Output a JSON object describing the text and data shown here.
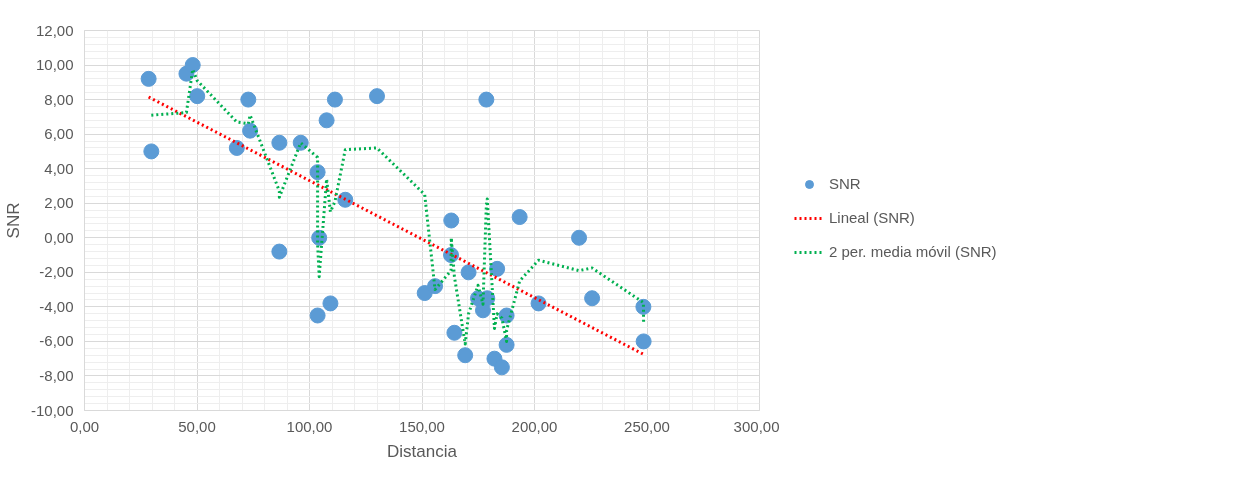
{
  "chart_data": {
    "type": "scatter",
    "xlabel": "Distancia",
    "ylabel": "SNR",
    "xlim": [
      0,
      300
    ],
    "ylim": [
      -10,
      12
    ],
    "xticks": [
      {
        "value": 0,
        "label": "0,00"
      },
      {
        "value": 50,
        "label": "50,00"
      },
      {
        "value": 100,
        "label": "100,00"
      },
      {
        "value": 150,
        "label": "150,00"
      },
      {
        "value": 200,
        "label": "200,00"
      },
      {
        "value": 250,
        "label": "250,00"
      },
      {
        "value": 300,
        "label": "300,00"
      }
    ],
    "yticks": [
      {
        "value": -10,
        "label": "-10,00"
      },
      {
        "value": -8,
        "label": "-8,00"
      },
      {
        "value": -6,
        "label": "-6,00"
      },
      {
        "value": -4,
        "label": "-4,00"
      },
      {
        "value": -2,
        "label": "-2,00"
      },
      {
        "value": 0,
        "label": "0,00"
      },
      {
        "value": 2,
        "label": "2,00"
      },
      {
        "value": 4,
        "label": "4,00"
      },
      {
        "value": 6,
        "label": "6,00"
      },
      {
        "value": 8,
        "label": "8,00"
      },
      {
        "value": 10,
        "label": "10,00"
      },
      {
        "value": 12,
        "label": "12,00"
      }
    ],
    "grid": true,
    "legend": "right",
    "series": [
      {
        "name": "SNR",
        "marker": "circle",
        "color": "#5b9bd5",
        "x": [
          28.5,
          29.7,
          45.3,
          48.1,
          50.1,
          67.7,
          72.8,
          73.6,
          86.6,
          86.6,
          96.1,
          103.6,
          103.6,
          104.3,
          107.6,
          109.3,
          111.3,
          115.9,
          130,
          151.2,
          155.8,
          162.9,
          163,
          164.4,
          169.2,
          170.7,
          174.9,
          177.1,
          178.6,
          179,
          182.2,
          183.4,
          185.5,
          187.6,
          187.6,
          193.4,
          201.8,
          219.8,
          225.6,
          248.4,
          248.5
        ],
        "values": [
          9.2,
          5.0,
          9.5,
          10.0,
          8.2,
          5.2,
          8.0,
          6.2,
          -0.8,
          5.5,
          5.5,
          3.8,
          -4.5,
          0,
          6.8,
          -3.8,
          8.0,
          2.2,
          8.2,
          -3.2,
          -2.8,
          -1.0,
          1.0,
          -5.5,
          -6.8,
          -2.0,
          -3.5,
          -4.2,
          8.0,
          -3.5,
          -7.0,
          -1.8,
          -7.5,
          -4.5,
          -6.2,
          1.2,
          -3.8,
          0,
          -3.5,
          -4.0,
          -6.0
        ]
      },
      {
        "name": "Lineal (SNR)",
        "type": "line",
        "line_style": "dotted",
        "marker": "none",
        "color": "#ff0000",
        "x": [
          28.5,
          248.5
        ],
        "values": [
          8.15,
          -6.75
        ]
      },
      {
        "name": "2 per. media móvil (SNR)",
        "type": "line",
        "line_style": "dotted",
        "marker": "none",
        "color": "#00b050",
        "x": [
          29.7,
          45.3,
          48.1,
          50.1,
          67.7,
          72.8,
          73.6,
          86.6,
          86.6,
          96.1,
          103.6,
          103.6,
          104.3,
          107.6,
          109.3,
          111.3,
          115.9,
          130,
          151.2,
          155.8,
          162.9,
          163,
          164.4,
          169.2,
          170.7,
          174.9,
          177.1,
          178.6,
          179,
          182.2,
          183.4,
          185.5,
          187.6,
          187.6,
          193.4,
          201.8,
          219.8,
          225.6,
          248.4,
          248.5
        ],
        "values": [
          7.1,
          7.25,
          9.75,
          9.1,
          6.7,
          6.6,
          7.1,
          2.7,
          2.35,
          5.5,
          4.65,
          -0.35,
          -2.25,
          3.4,
          1.5,
          2.1,
          5.1,
          5.2,
          2.5,
          -3.0,
          -1.9,
          0,
          -2.25,
          -6.15,
          -4.4,
          -2.75,
          -3.85,
          1.9,
          2.25,
          -5.25,
          -4.4,
          -4.65,
          -6.0,
          -5.35,
          -2.5,
          -1.3,
          -1.9,
          -1.75,
          -3.75,
          -5.0
        ]
      }
    ]
  }
}
